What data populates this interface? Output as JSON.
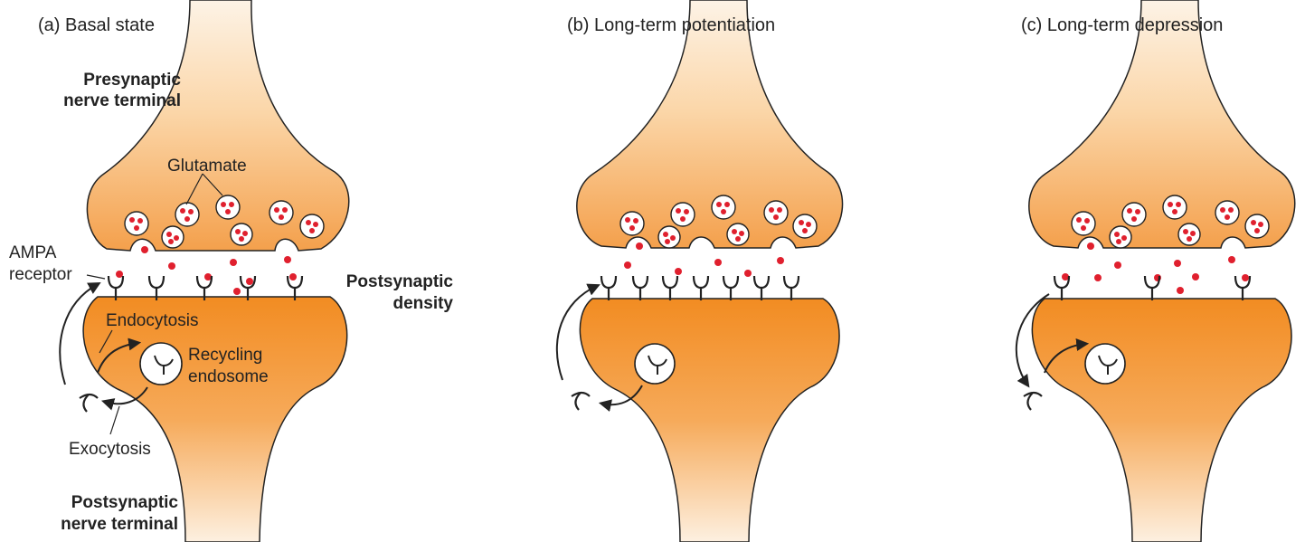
{
  "panels": [
    {
      "title": "(a) Basal state"
    },
    {
      "title": "(b) Long-term potentiation"
    },
    {
      "title": "(c) Long-term depression"
    }
  ],
  "labels": {
    "presynaptic_line1": "Presynaptic",
    "presynaptic_line2": "nerve terminal",
    "glutamate": "Glutamate",
    "ampa_line1": "AMPA",
    "ampa_line2": "receptor",
    "postsynaptic_density_line1": "Postsynaptic",
    "postsynaptic_density_line2": "density",
    "endocytosis": "Endocytosis",
    "recycling_line1": "Recycling",
    "recycling_line2": "endosome",
    "exocytosis": "Exocytosis",
    "postsynaptic_terminal_line1": "Postsynaptic",
    "postsynaptic_terminal_line2": "nerve terminal"
  },
  "colors": {
    "terminal_orange": "#f39c3c",
    "terminal_light": "#fde3c4",
    "glutamate_red": "#e0202e",
    "outline": "#222222"
  }
}
